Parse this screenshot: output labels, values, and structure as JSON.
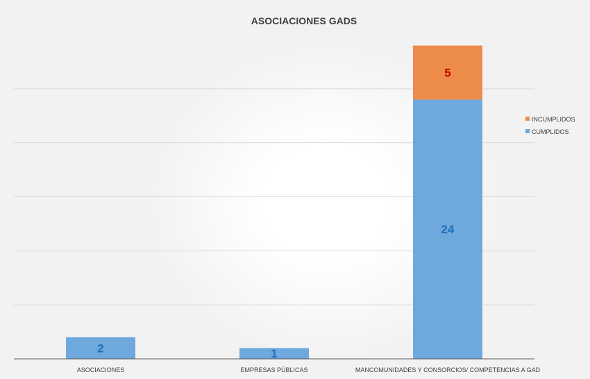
{
  "chart_data": {
    "type": "bar",
    "stacked": true,
    "title": "ASOCIACIONES GADS",
    "categories": [
      "ASOCIACIONES",
      "EMPRESAS PÚBLICAS",
      "MANCOMUNIDADES Y  CONSORCIOS/ COMPETENCIAS A GAD"
    ],
    "series": [
      {
        "name": "CUMPLIDOS",
        "values": [
          2,
          1,
          24
        ],
        "color": "#6fa8dc",
        "label_color": "#1f6fbf"
      },
      {
        "name": "INCUMPLIDOS",
        "values": [
          0,
          0,
          5
        ],
        "color": "#ed8b4a",
        "label_color": "#c00000"
      }
    ],
    "ylim": [
      0,
      30
    ],
    "gridlines": true,
    "legend_position": "right",
    "xlabel": "",
    "ylabel": ""
  }
}
